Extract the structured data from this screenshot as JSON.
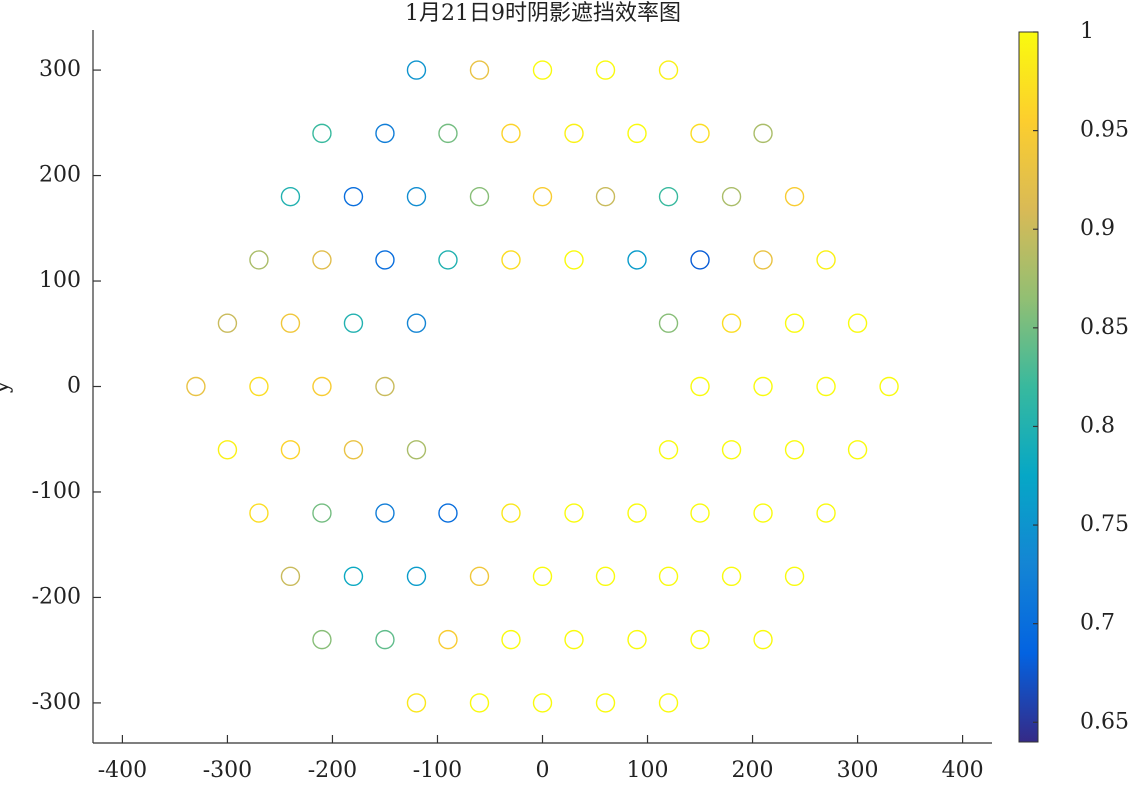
{
  "chart_data": {
    "type": "scatter",
    "title": "1月21日9时阴影遮挡效率图",
    "ylabel": "y",
    "x": [
      -120,
      -60,
      0,
      60,
      120,
      -210,
      -150,
      -90,
      -30,
      30,
      90,
      150,
      210,
      -240,
      -180,
      -120,
      -60,
      0,
      60,
      120,
      180,
      240,
      -270,
      -210,
      -150,
      -90,
      -30,
      30,
      90,
      150,
      210,
      270,
      -300,
      -240,
      -180,
      -120,
      120,
      180,
      240,
      300,
      -330,
      -270,
      -210,
      -150,
      150,
      210,
      270,
      330,
      -300,
      -240,
      -180,
      -120,
      120,
      180,
      240,
      300,
      -270,
      -210,
      -150,
      -90,
      -30,
      30,
      90,
      150,
      210,
      270,
      -240,
      -180,
      -120,
      -60,
      0,
      60,
      120,
      180,
      240,
      -210,
      -150,
      -90,
      -30,
      30,
      90,
      150,
      210,
      -120,
      -60,
      0,
      60,
      120
    ],
    "y": [
      300,
      300,
      300,
      300,
      300,
      240,
      240,
      240,
      240,
      240,
      240,
      240,
      240,
      180,
      180,
      180,
      180,
      180,
      180,
      180,
      180,
      180,
      120,
      120,
      120,
      120,
      120,
      120,
      120,
      120,
      120,
      120,
      60,
      60,
      60,
      60,
      60,
      60,
      60,
      60,
      0,
      0,
      0,
      0,
      0,
      0,
      0,
      0,
      -60,
      -60,
      -60,
      -60,
      -60,
      -60,
      -60,
      -60,
      -120,
      -120,
      -120,
      -120,
      -120,
      -120,
      -120,
      -120,
      -120,
      -120,
      -180,
      -180,
      -180,
      -180,
      -180,
      -180,
      -180,
      -180,
      -180,
      -240,
      -240,
      -240,
      -240,
      -240,
      -240,
      -240,
      -240,
      -300,
      -300,
      -300,
      -300,
      -300
    ],
    "values": [
      0.75,
      0.93,
      1,
      1,
      0.99,
      0.82,
      0.72,
      0.85,
      0.96,
      0.99,
      1,
      0.97,
      0.88,
      0.8,
      0.7,
      0.74,
      0.86,
      0.95,
      0.9,
      0.82,
      0.88,
      0.95,
      0.88,
      0.92,
      0.7,
      0.8,
      0.97,
      1,
      0.76,
      0.68,
      0.93,
      0.99,
      0.9,
      0.94,
      0.8,
      0.73,
      0.86,
      0.97,
      1,
      1,
      0.93,
      0.97,
      0.95,
      0.9,
      1,
      1,
      1,
      1,
      0.99,
      0.96,
      0.93,
      0.88,
      1,
      1,
      1,
      1,
      0.97,
      0.85,
      0.72,
      0.7,
      0.98,
      1,
      1,
      1,
      1,
      1,
      0.9,
      0.78,
      0.76,
      0.94,
      1,
      1,
      1,
      1,
      1,
      0.86,
      0.84,
      0.95,
      1,
      1,
      1,
      1,
      1,
      0.98,
      1,
      1,
      1,
      1
    ],
    "xlim": [
      -428,
      428
    ],
    "ylim": [
      -338,
      338
    ],
    "xticks": [
      -400,
      -300,
      -200,
      -100,
      0,
      100,
      200,
      300,
      400
    ],
    "yticks": [
      -300,
      -200,
      -100,
      0,
      100,
      200,
      300
    ],
    "clim": [
      0.64,
      1
    ],
    "colorbar_ticks": [
      0.65,
      0.7,
      0.75,
      0.8,
      0.85,
      0.9,
      0.95,
      1
    ],
    "colormap": [
      "#352a87",
      "#0363e1",
      "#1485d4",
      "#06a7c6",
      "#38b99e",
      "#92bf73",
      "#d9ba56",
      "#fcce2e",
      "#f9fb0e"
    ]
  }
}
